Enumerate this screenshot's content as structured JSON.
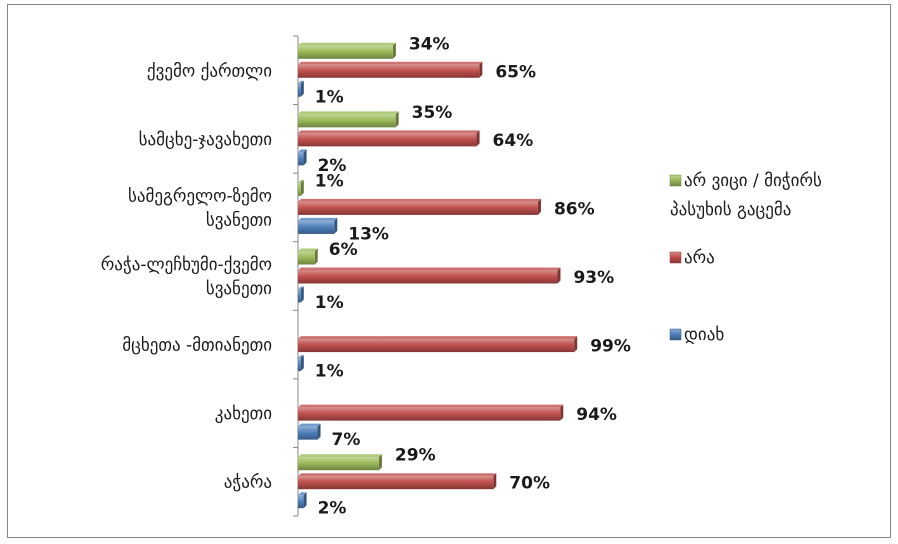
{
  "chart_data": {
    "type": "bar",
    "orientation": "horizontal",
    "categories": [
      [
        "ქვემო ქართლი"
      ],
      [
        "სამცხე-ჯავახეთი"
      ],
      [
        "სამეგრელო-ზემო",
        "სვანეთი"
      ],
      [
        "რაჭა-ლეჩხუმი-ქვემო",
        "სვანეთი"
      ],
      [
        "მცხეთა -მთიანეთი"
      ],
      [
        "კახეთი"
      ],
      [
        "აჭარა"
      ]
    ],
    "series": [
      {
        "name": [
          "არ ვიცი / მიჭირს",
          "პასუხის გაცემა"
        ],
        "color": "#9BBB59",
        "values": [
          34,
          35,
          1,
          6,
          null,
          null,
          29
        ],
        "labels": [
          "34%",
          "35%",
          "1%",
          "6%",
          "",
          "",
          "29%"
        ]
      },
      {
        "name": [
          "არა"
        ],
        "color": "#C0504D",
        "values": [
          65,
          64,
          86,
          93,
          99,
          94,
          70
        ],
        "labels": [
          "65%",
          "64%",
          "86%",
          "93%",
          "99%",
          "94%",
          "70%"
        ]
      },
      {
        "name": [
          "დიახ"
        ],
        "color": "#4F81BD",
        "values": [
          1,
          2,
          13,
          1,
          1,
          7,
          2
        ],
        "labels": [
          "1%",
          "2%",
          "13%",
          "1%",
          "1%",
          "7%",
          "2%"
        ]
      }
    ],
    "xlim": [
      0,
      100
    ],
    "legend_position": "right",
    "grid": false
  }
}
